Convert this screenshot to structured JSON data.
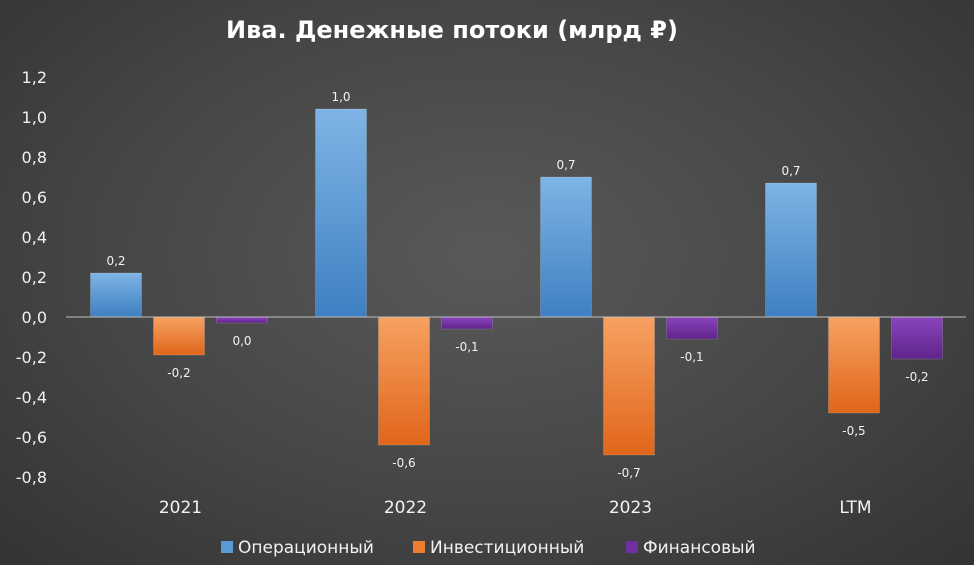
{
  "chart_data": {
    "type": "bar",
    "title": "Ива. Денежные потоки (млрд ₽)",
    "categories": [
      "2021",
      "2022",
      "2023",
      "LTM"
    ],
    "series": [
      {
        "name": "Операционный",
        "values": [
          0.22,
          1.04,
          0.7,
          0.67
        ],
        "labels": [
          "0,2",
          "1,0",
          "0,7",
          "0,7"
        ],
        "color": "#5b9bd5"
      },
      {
        "name": "Инвестиционный",
        "values": [
          -0.19,
          -0.64,
          -0.69,
          -0.48
        ],
        "labels": [
          "-0,2",
          "-0,6",
          "-0,7",
          "-0,5"
        ],
        "color": "#ed7d31"
      },
      {
        "name": "Финансовый",
        "values": [
          -0.03,
          -0.06,
          -0.11,
          -0.21
        ],
        "labels": [
          "0,0",
          "-0,1",
          "-0,1",
          "-0,2"
        ],
        "color": "#7030a0"
      }
    ],
    "y_ticks": [
      1.2,
      1.0,
      0.8,
      0.6,
      0.4,
      0.2,
      0.0,
      -0.2,
      -0.4,
      -0.6,
      -0.8
    ],
    "y_tick_labels": [
      "1,2",
      "1,0",
      "0,8",
      "0,6",
      "0,4",
      "0,2",
      "0,0",
      "-0,2",
      "-0,4",
      "-0,6",
      "-0,8"
    ],
    "ylim": [
      -0.8,
      1.2
    ],
    "grid": false,
    "legend_position": "bottom"
  }
}
